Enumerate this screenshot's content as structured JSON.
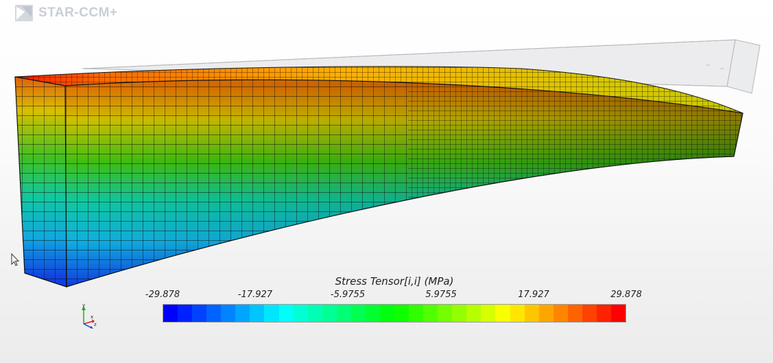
{
  "app": {
    "logo_text": "STAR-CCM+",
    "logo_icon": "star-ccm-logo-icon"
  },
  "scene": {
    "undeformed_outline_icon": "undeformed-beam-outline",
    "deformed_mesh_icon": "deformed-beam-mesh"
  },
  "legend": {
    "title": "Stress Tensor[i,i] (MPa)",
    "ticks": [
      "-29.878",
      "-17.927",
      "-5.9755",
      "5.9755",
      "17.927",
      "29.878"
    ],
    "min": -29.878,
    "max": 29.878,
    "bands": 32,
    "colormap": [
      "#0000ff",
      "#00ffff",
      "#00ff00",
      "#ffff00",
      "#ff0000"
    ]
  },
  "triad": {
    "x": "x",
    "y": "y",
    "z": "z",
    "colors": {
      "x": "#cc2222",
      "y": "#22aa22",
      "z": "#2244cc"
    }
  },
  "cursor_icon": "mouse-pointer-icon"
}
